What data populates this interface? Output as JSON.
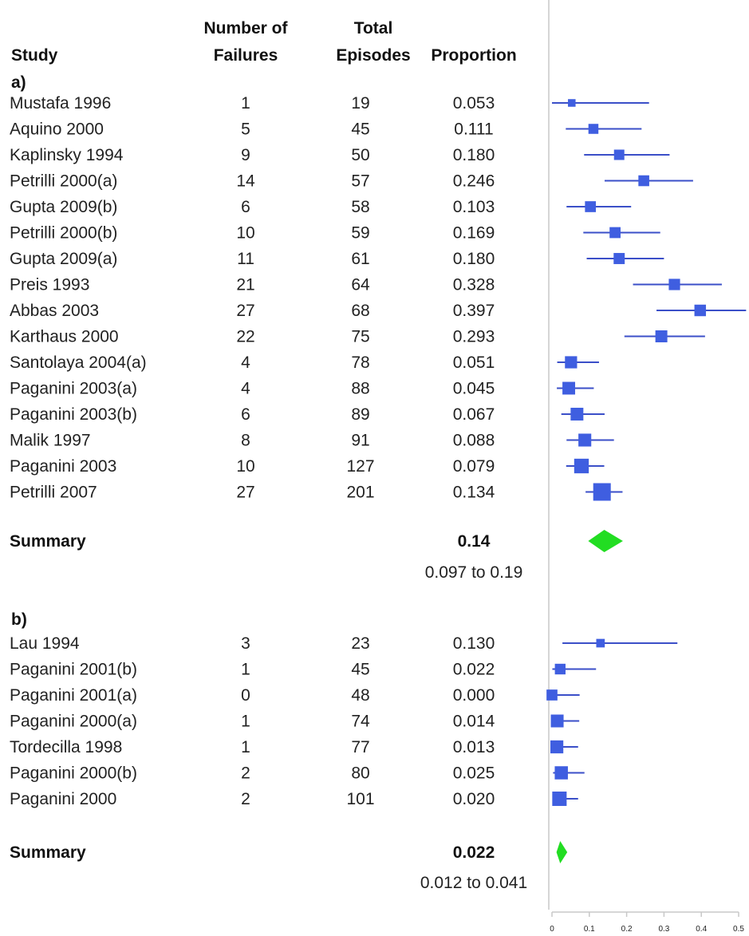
{
  "headers": {
    "study": "Study",
    "failures": [
      "Number of",
      "Failures"
    ],
    "episodes": [
      "Total",
      "Episodes"
    ],
    "proportion": "Proportion"
  },
  "colors": {
    "ci_line": "#3b4fc8",
    "marker": "#3f5ee0",
    "summary_diamond": "#22dd22",
    "axis": "#c8c8c8"
  },
  "chart_data": {
    "type": "forest",
    "xlim": [
      0,
      0.5
    ],
    "x_ticks": [
      "0",
      "0.1",
      "0.2",
      "0.3",
      "0.4",
      "0.5"
    ],
    "groups": [
      {
        "label": "a)",
        "studies": [
          {
            "name": "Mustafa 1996",
            "failures": "1",
            "episodes": "19",
            "proportion": "0.053",
            "value": 0.053,
            "ci": [
              0.0,
              0.26
            ]
          },
          {
            "name": "Aquino 2000",
            "failures": "5",
            "episodes": "45",
            "proportion": "0.111",
            "value": 0.111,
            "ci": [
              0.037,
              0.24
            ]
          },
          {
            "name": "Kaplinsky 1994",
            "failures": "9",
            "episodes": "50",
            "proportion": "0.180",
            "value": 0.18,
            "ci": [
              0.086,
              0.315
            ]
          },
          {
            "name": "Petrilli 2000(a)",
            "failures": "14",
            "episodes": "57",
            "proportion": "0.246",
            "value": 0.246,
            "ci": [
              0.141,
              0.378
            ]
          },
          {
            "name": "Gupta 2009(b)",
            "failures": "6",
            "episodes": "58",
            "proportion": "0.103",
            "value": 0.103,
            "ci": [
              0.039,
              0.212
            ]
          },
          {
            "name": "Petrilli 2000(b)",
            "failures": "10",
            "episodes": "59",
            "proportion": "0.169",
            "value": 0.169,
            "ci": [
              0.084,
              0.29
            ]
          },
          {
            "name": "Gupta 2009(a)",
            "failures": "11",
            "episodes": "61",
            "proportion": "0.180",
            "value": 0.18,
            "ci": [
              0.093,
              0.3
            ]
          },
          {
            "name": "Preis 1993",
            "failures": "21",
            "episodes": "64",
            "proportion": "0.328",
            "value": 0.328,
            "ci": [
              0.217,
              0.455
            ]
          },
          {
            "name": "Abbas 2003",
            "failures": "27",
            "episodes": "68",
            "proportion": "0.397",
            "value": 0.397,
            "ci": [
              0.28,
              0.52
            ]
          },
          {
            "name": "Karthaus 2000",
            "failures": "22",
            "episodes": "75",
            "proportion": "0.293",
            "value": 0.293,
            "ci": [
              0.194,
              0.41
            ]
          },
          {
            "name": "Santolaya 2004(a)",
            "failures": "4",
            "episodes": "78",
            "proportion": "0.051",
            "value": 0.051,
            "ci": [
              0.014,
              0.126
            ]
          },
          {
            "name": "Paganini 2003(a)",
            "failures": "4",
            "episodes": "88",
            "proportion": "0.045",
            "value": 0.045,
            "ci": [
              0.013,
              0.112
            ]
          },
          {
            "name": "Paganini 2003(b)",
            "failures": "6",
            "episodes": "89",
            "proportion": "0.067",
            "value": 0.067,
            "ci": [
              0.025,
              0.141
            ]
          },
          {
            "name": "Malik 1997",
            "failures": "8",
            "episodes": "91",
            "proportion": "0.088",
            "value": 0.088,
            "ci": [
              0.039,
              0.166
            ]
          },
          {
            "name": "Paganini 2003",
            "failures": "10",
            "episodes": "127",
            "proportion": "0.079",
            "value": 0.079,
            "ci": [
              0.038,
              0.14
            ]
          },
          {
            "name": "Petrilli 2007",
            "failures": "27",
            "episodes": "201",
            "proportion": "0.134",
            "value": 0.134,
            "ci": [
              0.09,
              0.189
            ]
          }
        ],
        "summary": {
          "label": "Summary",
          "value_text": "0.14",
          "ci_text": "0.097  to  0.19",
          "value": 0.14,
          "ci": [
            0.097,
            0.19
          ]
        }
      },
      {
        "label": "b)",
        "studies": [
          {
            "name": "Lau 1994",
            "failures": "3",
            "episodes": "23",
            "proportion": "0.130",
            "value": 0.13,
            "ci": [
              0.028,
              0.336
            ]
          },
          {
            "name": "Paganini 2001(b)",
            "failures": "1",
            "episodes": "45",
            "proportion": "0.022",
            "value": 0.022,
            "ci": [
              0.001,
              0.118
            ]
          },
          {
            "name": "Paganini 2001(a)",
            "failures": "0",
            "episodes": "48",
            "proportion": "0.000",
            "value": 0.0,
            "ci": [
              0.0,
              0.074
            ]
          },
          {
            "name": "Paganini 2000(a)",
            "failures": "1",
            "episodes": "74",
            "proportion": "0.014",
            "value": 0.014,
            "ci": [
              0.0,
              0.073
            ]
          },
          {
            "name": "Tordecilla 1998",
            "failures": "1",
            "episodes": "77",
            "proportion": "0.013",
            "value": 0.013,
            "ci": [
              0.0,
              0.07
            ]
          },
          {
            "name": "Paganini 2000(b)",
            "failures": "2",
            "episodes": "80",
            "proportion": "0.025",
            "value": 0.025,
            "ci": [
              0.003,
              0.087
            ]
          },
          {
            "name": "Paganini 2000",
            "failures": "2",
            "episodes": "101",
            "proportion": "0.020",
            "value": 0.02,
            "ci": [
              0.002,
              0.07
            ]
          }
        ],
        "summary": {
          "label": "Summary",
          "value_text": "0.022",
          "ci_text": "0.012  to  0.041",
          "value": 0.022,
          "ci": [
            0.012,
            0.041
          ]
        }
      }
    ]
  }
}
